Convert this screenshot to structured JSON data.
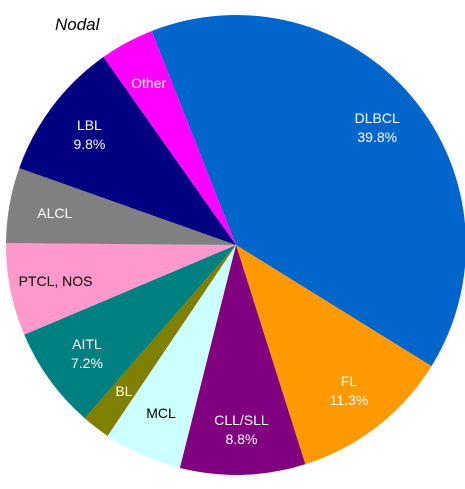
{
  "chart_data": {
    "type": "pie",
    "title": "Nodal",
    "slices": [
      {
        "name": "DLBCL",
        "value": 39.8,
        "value_label": "39.8%",
        "color": "#0066CC",
        "label_color": "#ffffff"
      },
      {
        "name": "FL",
        "value": 11.3,
        "value_label": "11.3%",
        "color": "#FF9900",
        "label_color": "#ffffff"
      },
      {
        "name": "CLL/SLL",
        "value": 8.8,
        "value_label": "8.8%",
        "color": "#800080",
        "label_color": "#ffffff"
      },
      {
        "name": "MCL",
        "value": 5.5,
        "value_label": "",
        "color": "#CCFFFF",
        "label_color": "#000000"
      },
      {
        "name": "BL",
        "value": 2.0,
        "value_label": "",
        "color": "#808000",
        "label_color": "#ffffff"
      },
      {
        "name": "AITL",
        "value": 7.2,
        "value_label": "7.2%",
        "color": "#008080",
        "label_color": "#ffffff"
      },
      {
        "name": "PTCL, NOS",
        "value": 6.5,
        "value_label": "",
        "color": "#FF99CC",
        "label_color": "#000000"
      },
      {
        "name": "ALCL",
        "value": 5.3,
        "value_label": "",
        "color": "#808080",
        "label_color": "#ffffff"
      },
      {
        "name": "LBL",
        "value": 9.8,
        "value_label": "9.8%",
        "color": "#000080",
        "label_color": "#ffffff"
      },
      {
        "name": "Other",
        "value": 3.8,
        "value_label": "",
        "color": "#FF00FF",
        "label_color": "#ffffff"
      }
    ]
  }
}
